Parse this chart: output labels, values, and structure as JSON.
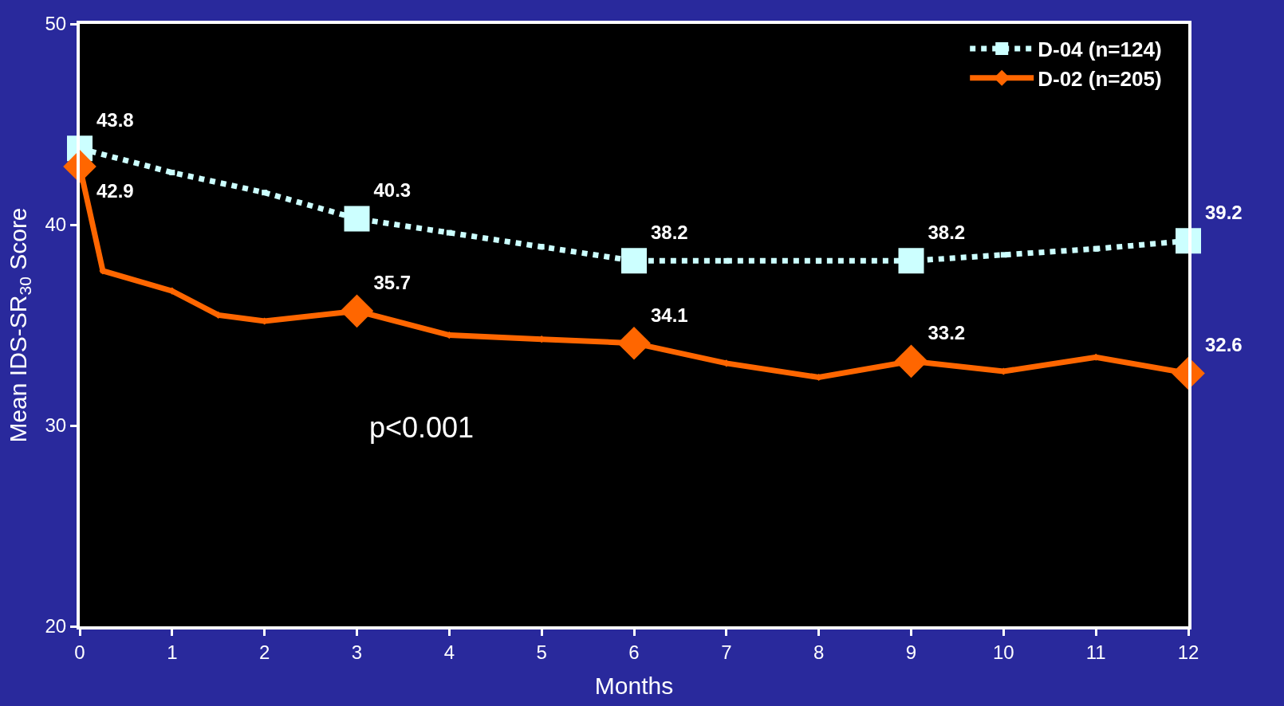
{
  "chart_data": {
    "type": "line",
    "xlabel": "Months",
    "ylabel": "Mean IDS-SR$_{30}$ Score",
    "xlim": [
      0,
      12
    ],
    "xticks": [
      0,
      1,
      2,
      3,
      4,
      5,
      6,
      7,
      8,
      9,
      10,
      11,
      12
    ],
    "ylim": [
      20,
      50
    ],
    "yticks": [
      20,
      30,
      40,
      50
    ],
    "grid": false,
    "legend": "top right",
    "annotations": [
      "p<0.001"
    ],
    "series": [
      {
        "name": "D-04 (n=124)",
        "color": "#ccffff",
        "marker": "square",
        "line_style": "dotted",
        "x": [
          0,
          1,
          2,
          3,
          4,
          5,
          6,
          7,
          8,
          9,
          10,
          11,
          12
        ],
        "values": [
          43.8,
          42.6,
          41.6,
          40.3,
          39.6,
          38.9,
          38.2,
          38.2,
          38.2,
          38.2,
          38.5,
          38.8,
          39.2
        ],
        "value_labels": [
          "43.8",
          null,
          null,
          "40.3",
          null,
          null,
          "38.2",
          null,
          null,
          "38.2",
          null,
          null,
          "39.2"
        ]
      },
      {
        "name": "D-02 (n=205)",
        "color": "#ff6600",
        "marker": "diamond",
        "line_style": "solid",
        "x": [
          0,
          0.25,
          1,
          1.5,
          2,
          3,
          4,
          5,
          6,
          7,
          8,
          9,
          10,
          11,
          12
        ],
        "values": [
          42.9,
          37.7,
          36.7,
          35.5,
          35.2,
          35.7,
          34.5,
          34.3,
          34.1,
          33.1,
          32.4,
          33.2,
          32.7,
          33.4,
          32.6
        ],
        "value_labels": [
          "42.9",
          null,
          null,
          null,
          null,
          "35.7",
          null,
          null,
          "34.1",
          null,
          null,
          "33.2",
          null,
          null,
          "32.6"
        ]
      }
    ]
  }
}
